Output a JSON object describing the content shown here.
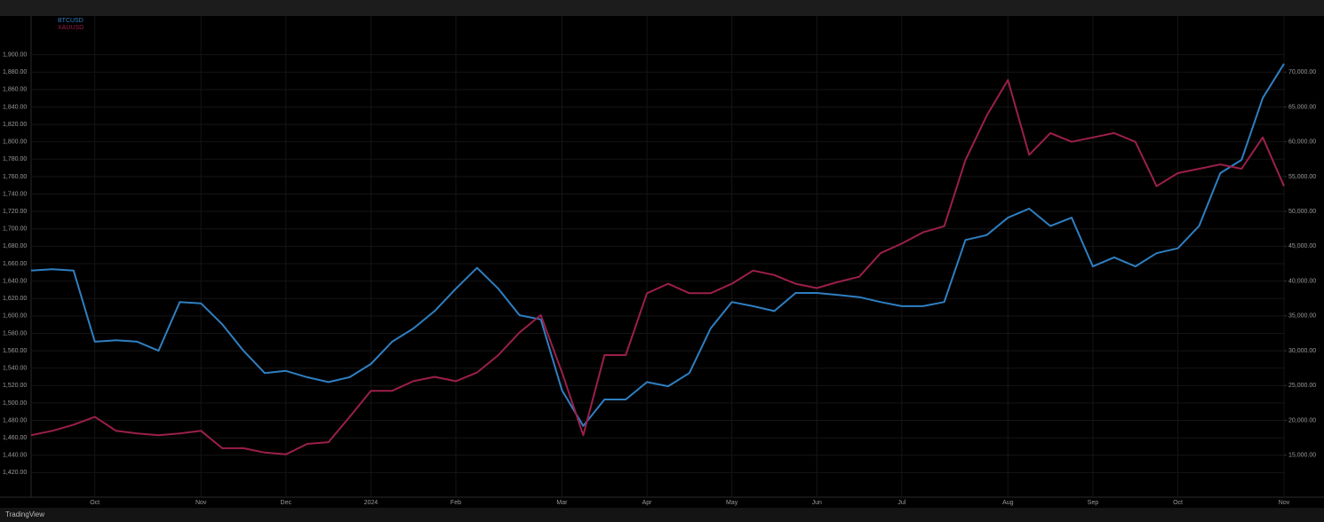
{
  "chart_data": {
    "type": "line",
    "categories": [
      null,
      null,
      null,
      "Oct",
      null,
      null,
      null,
      null,
      "Nov",
      null,
      null,
      null,
      "Dec",
      null,
      null,
      null,
      "2024",
      null,
      null,
      null,
      "Feb",
      null,
      null,
      null,
      null,
      "Mar",
      null,
      null,
      null,
      "Apr",
      null,
      null,
      null,
      "May",
      null,
      null,
      null,
      "Jun",
      null,
      null,
      null,
      "Jul",
      null,
      null,
      null,
      null,
      "Aug",
      null,
      null,
      null,
      "Sep",
      null,
      null,
      null,
      "Oct",
      null,
      null,
      null,
      null,
      "Nov"
    ],
    "series": [
      {
        "name": "BTCUSD",
        "color": "#2f7fc1",
        "axis": "y2",
        "values": [
          41500,
          41700,
          41500,
          31300,
          31500,
          31300,
          30000,
          37000,
          36800,
          33800,
          30000,
          26800,
          27100,
          26200,
          25500,
          26200,
          28100,
          31300,
          33200,
          35700,
          38900,
          41900,
          38900,
          35100,
          34500,
          24300,
          19200,
          23000,
          23000,
          25500,
          24900,
          26800,
          33200,
          37000,
          36400,
          35700,
          38300,
          38300,
          38000,
          37700,
          37000,
          36400,
          36400,
          37000,
          45900,
          46600,
          49100,
          50400,
          47900,
          49100,
          42100,
          43400,
          42100,
          44000,
          44700,
          47900,
          55500,
          57400,
          66300,
          71200
        ]
      },
      {
        "name": "XAUUSD",
        "color": "#9c1f4a",
        "values": [
          1463,
          1468,
          1475,
          1484,
          1468,
          1465,
          1463,
          1465,
          1468,
          1448,
          1448,
          1443,
          1441,
          1453,
          1455,
          1484,
          1514,
          1514,
          1525,
          1530,
          1525,
          1535,
          1555,
          1581,
          1601,
          1535,
          1463,
          1555,
          1555,
          1626,
          1637,
          1626,
          1626,
          1637,
          1652,
          1647,
          1637,
          1632,
          1639,
          1645,
          1672,
          1683,
          1696,
          1703,
          1779,
          1830,
          1871,
          1785,
          1810,
          1800,
          1805,
          1810,
          1800,
          1749,
          1764,
          1769,
          1774,
          1769,
          1805,
          1749
        ]
      }
    ],
    "ylim": [
      1400,
      1920
    ],
    "yticks": [
      {
        "value": 1420,
        "label": "1,420.00"
      },
      {
        "value": 1440,
        "label": "1,440.00"
      },
      {
        "value": 1460,
        "label": "1,460.00"
      },
      {
        "value": 1480,
        "label": "1,480.00"
      },
      {
        "value": 1500,
        "label": "1,500.00"
      },
      {
        "value": 1520,
        "label": "1,520.00"
      },
      {
        "value": 1540,
        "label": "1,540.00"
      },
      {
        "value": 1560,
        "label": "1,560.00"
      },
      {
        "value": 1580,
        "label": "1,580.00"
      },
      {
        "value": 1600,
        "label": "1,600.00"
      },
      {
        "value": 1620,
        "label": "1,620.00"
      },
      {
        "value": 1640,
        "label": "1,640.00"
      },
      {
        "value": 1660,
        "label": "1,660.00"
      },
      {
        "value": 1680,
        "label": "1,680.00"
      },
      {
        "value": 1700,
        "label": "1,700.00"
      },
      {
        "value": 1720,
        "label": "1,720.00"
      },
      {
        "value": 1740,
        "label": "1,740.00"
      },
      {
        "value": 1760,
        "label": "1,760.00"
      },
      {
        "value": 1780,
        "label": "1,780.00"
      },
      {
        "value": 1800,
        "label": "1,800.00"
      },
      {
        "value": 1820,
        "label": "1,820.00"
      },
      {
        "value": 1840,
        "label": "1,840.00"
      },
      {
        "value": 1860,
        "label": "1,860.00"
      },
      {
        "value": 1880,
        "label": "1,880.00"
      },
      {
        "value": 1900,
        "label": "1,900.00"
      }
    ],
    "y2lim": [
      10000,
      75000
    ],
    "y2ticks": [
      {
        "value": 15000,
        "label": "15,000.00"
      },
      {
        "value": 20000,
        "label": "20,000.00"
      },
      {
        "value": 25000,
        "label": "25,000.00"
      },
      {
        "value": 30000,
        "label": "30,000.00"
      },
      {
        "value": 35000,
        "label": "35,000.00"
      },
      {
        "value": 40000,
        "label": "40,000.00"
      },
      {
        "value": 45000,
        "label": "45,000.00"
      },
      {
        "value": 50000,
        "label": "50,000.00"
      },
      {
        "value": 55000,
        "label": "55,000.00"
      },
      {
        "value": 60000,
        "label": "60,000.00"
      },
      {
        "value": 65000,
        "label": "65,000.00"
      },
      {
        "value": 70000,
        "label": "70,000.00"
      }
    ],
    "grid": true,
    "legend": "top-left",
    "footer": "TradingView"
  }
}
